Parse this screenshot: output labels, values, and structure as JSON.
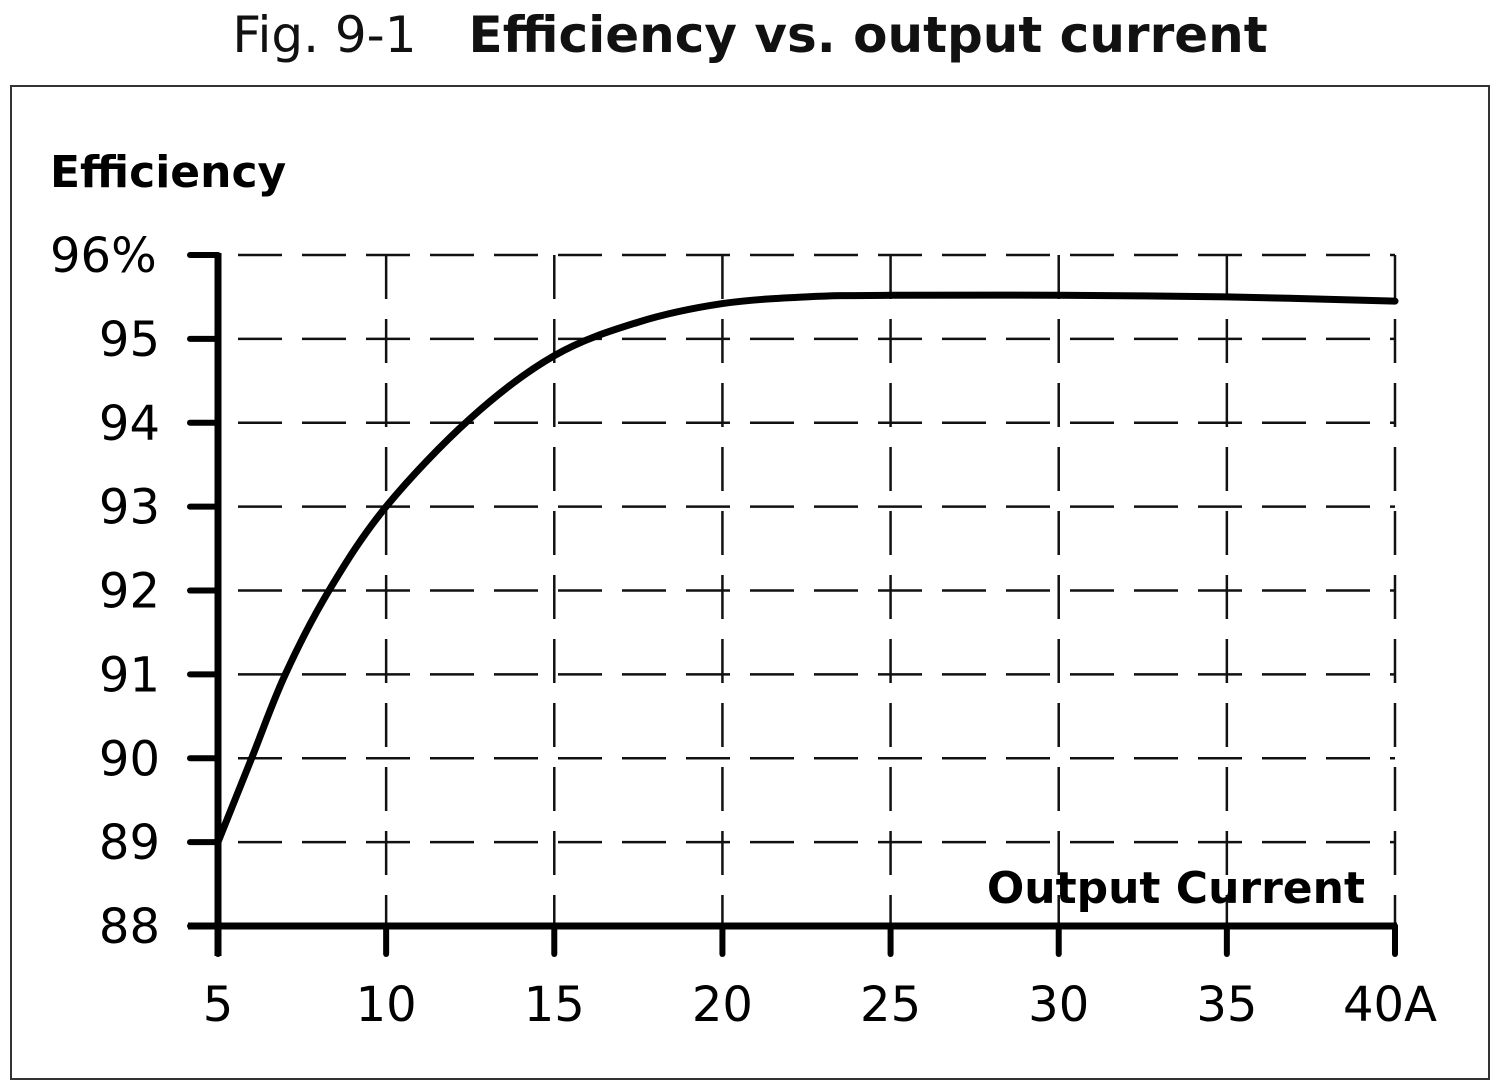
{
  "figure": {
    "number": "Fig. 9-1",
    "title": "Efficiency vs. output current"
  },
  "chart_data": {
    "type": "line",
    "title": "Efficiency vs. output current",
    "figure_label": "Fig. 9-1",
    "xlabel": "Output Current",
    "ylabel": "Efficiency",
    "x_unit": "A",
    "y_unit": "%",
    "xlim": [
      5,
      40
    ],
    "ylim": [
      88,
      96
    ],
    "x_ticks": [
      "5",
      "10",
      "15",
      "20",
      "25",
      "30",
      "35",
      "40A"
    ],
    "y_ticks": [
      "88",
      "89",
      "90",
      "91",
      "92",
      "93",
      "94",
      "95",
      "96%"
    ],
    "grid": true,
    "grid_style": "dashed",
    "legend": null,
    "series": [
      {
        "name": "Efficiency",
        "x": [
          5,
          6,
          7,
          8.3,
          10,
          12.5,
          15,
          17.5,
          20,
          22.5,
          25,
          30,
          35,
          40
        ],
        "values": [
          89.0,
          90.0,
          91.0,
          92.0,
          93.0,
          94.05,
          94.8,
          95.2,
          95.42,
          95.5,
          95.52,
          95.52,
          95.5,
          95.45
        ]
      }
    ]
  }
}
